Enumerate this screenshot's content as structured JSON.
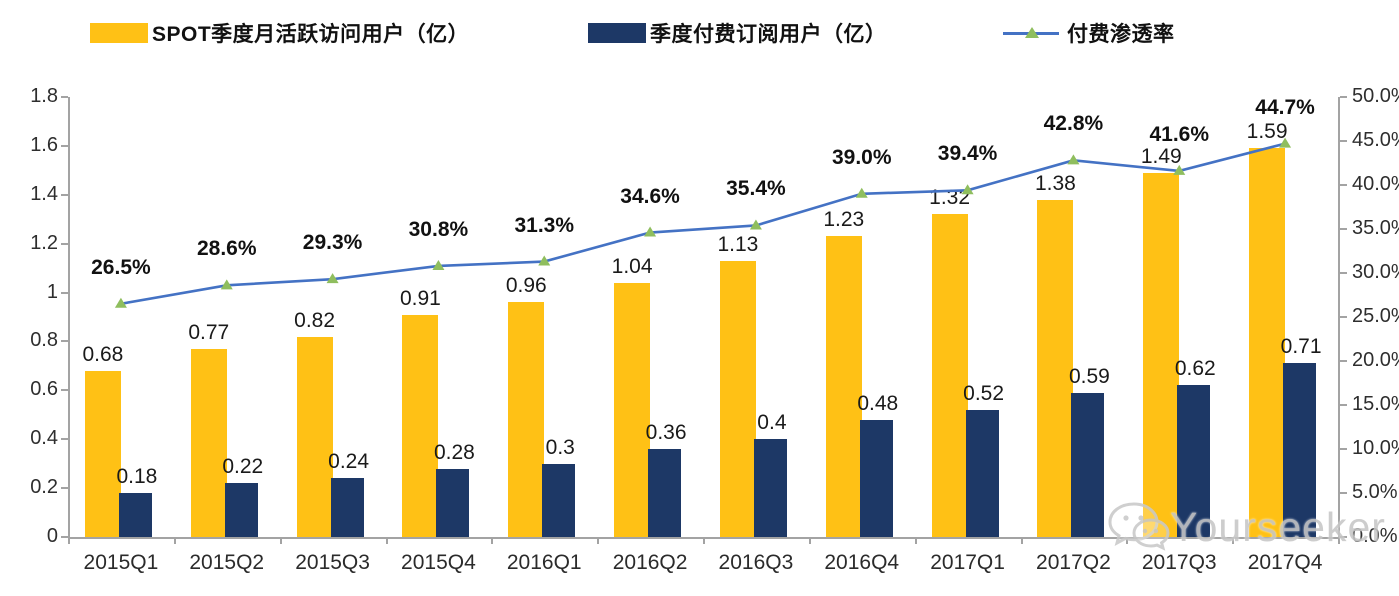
{
  "legend": [
    {
      "label": "SPOT季度月活跃访问用户（亿）",
      "color": "#FFC115",
      "type": "bar"
    },
    {
      "label": "季度付费订阅用户（亿）",
      "color": "#1D3866",
      "type": "bar"
    },
    {
      "label": "付费渗透率",
      "color": "#4472C4",
      "marker_color": "#8FBE5E",
      "type": "line"
    }
  ],
  "chart_data": {
    "type": "bar+line combo",
    "categories": [
      "2015Q1",
      "2015Q2",
      "2015Q3",
      "2015Q4",
      "2016Q1",
      "2016Q2",
      "2016Q3",
      "2016Q4",
      "2017Q1",
      "2017Q2",
      "2017Q3",
      "2017Q4"
    ],
    "series": [
      {
        "name": "SPOT季度月活跃访问用户（亿）",
        "type": "bar",
        "axis": "left",
        "color": "#FFC115",
        "values": [
          0.68,
          0.77,
          0.82,
          0.91,
          0.96,
          1.04,
          1.13,
          1.23,
          1.32,
          1.38,
          1.49,
          1.59
        ],
        "labels": [
          "0.68",
          "0.77",
          "0.82",
          "0.91",
          "0.96",
          "1.04",
          "1.13",
          "1.23",
          "1.32",
          "1.38",
          "1.49",
          "1.59"
        ]
      },
      {
        "name": "季度付费订阅用户（亿）",
        "type": "bar",
        "axis": "left",
        "color": "#1D3866",
        "values": [
          0.18,
          0.22,
          0.24,
          0.28,
          0.3,
          0.36,
          0.4,
          0.48,
          0.52,
          0.59,
          0.62,
          0.71
        ],
        "labels": [
          "0.18",
          "0.22",
          "0.24",
          "0.28",
          "0.3",
          "0.36",
          "0.4",
          "0.48",
          "0.52",
          "0.59",
          "0.62",
          "0.71"
        ]
      },
      {
        "name": "付费渗透率",
        "type": "line",
        "axis": "right",
        "color": "#4472C4",
        "marker": "triangle",
        "marker_color": "#8FBE5E",
        "values": [
          26.5,
          28.6,
          29.3,
          30.8,
          31.3,
          34.6,
          35.4,
          39.0,
          39.4,
          42.8,
          41.6,
          44.7
        ],
        "labels": [
          "26.5%",
          "28.6%",
          "29.3%",
          "30.8%",
          "31.3%",
          "34.6%",
          "35.4%",
          "39.0%",
          "39.4%",
          "42.8%",
          "41.6%",
          "44.7%"
        ]
      }
    ],
    "left_axis": {
      "min": 0,
      "max": 1.8,
      "step": 0.2,
      "ticks": [
        "1.8",
        "1.6",
        "1.4",
        "1.2",
        "1",
        "0.8",
        "0.6",
        "0.4",
        "0.2",
        "0"
      ]
    },
    "right_axis": {
      "min": 0,
      "max": 50,
      "step": 5,
      "ticks": [
        "50.0%",
        "45.0%",
        "40.0%",
        "35.0%",
        "30.0%",
        "25.0%",
        "20.0%",
        "15.0%",
        "10.0%",
        "5.0%",
        "0.0%"
      ]
    },
    "grid": false,
    "legend_position": "top",
    "title": ""
  },
  "colors": {
    "mau_bar": "#FFC115",
    "subs_bar": "#1D3866",
    "line": "#4472C4",
    "marker": "#8FBE5E",
    "axis": "#A3A3A3",
    "watermark": "#C7C7C7"
  },
  "watermark": {
    "text": "Yourseeker",
    "icon": "wechat-icon"
  }
}
